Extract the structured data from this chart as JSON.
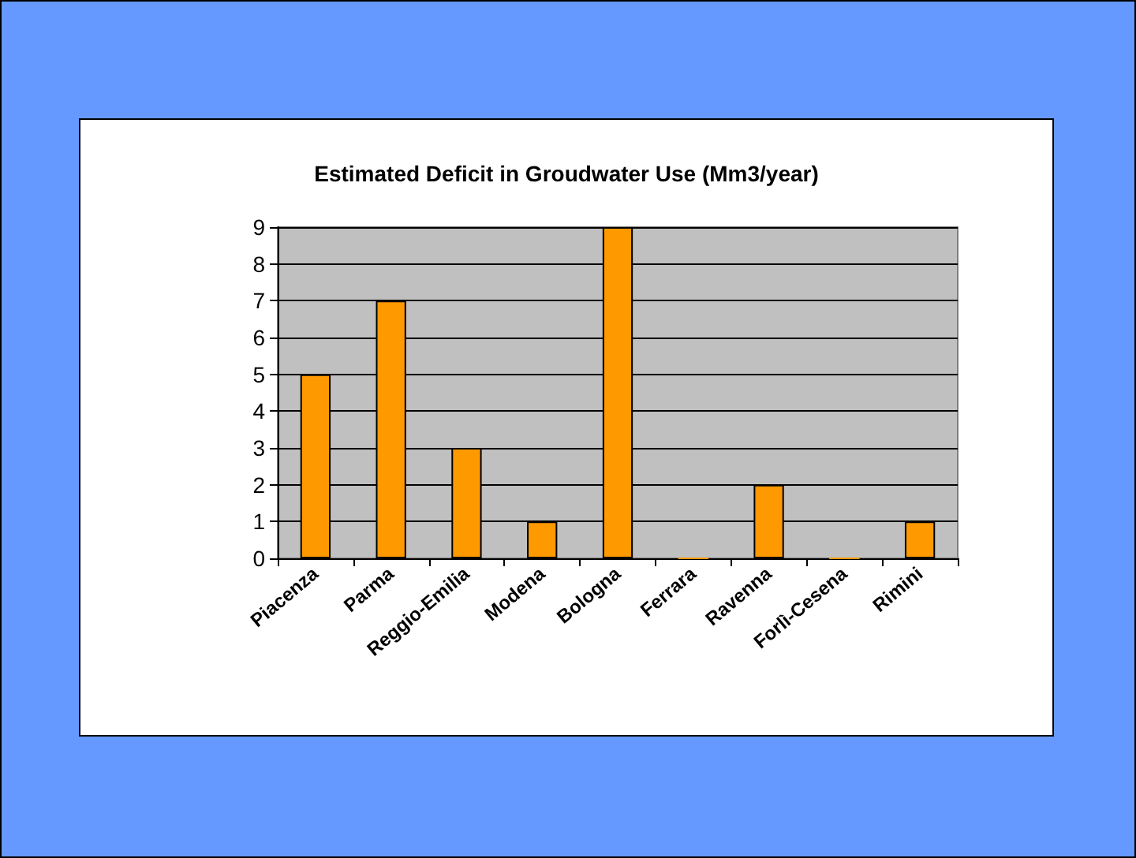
{
  "chart_data": {
    "type": "bar",
    "title": "Estimated Deficit in Groudwater Use (Mm3/year)",
    "categories": [
      "Piacenza",
      "Parma",
      "Reggio-Emilia",
      "Modena",
      "Bologna",
      "Ferrara",
      "Ravenna",
      "Forlì-Cesena",
      "Rimini"
    ],
    "values": [
      5,
      7,
      3,
      1,
      9,
      0,
      2,
      0,
      1
    ],
    "color": "#ff9900",
    "ylim": [
      0,
      9
    ],
    "yticks": [
      0,
      1,
      2,
      3,
      4,
      5,
      6,
      7,
      8,
      9
    ],
    "grid": "y"
  }
}
